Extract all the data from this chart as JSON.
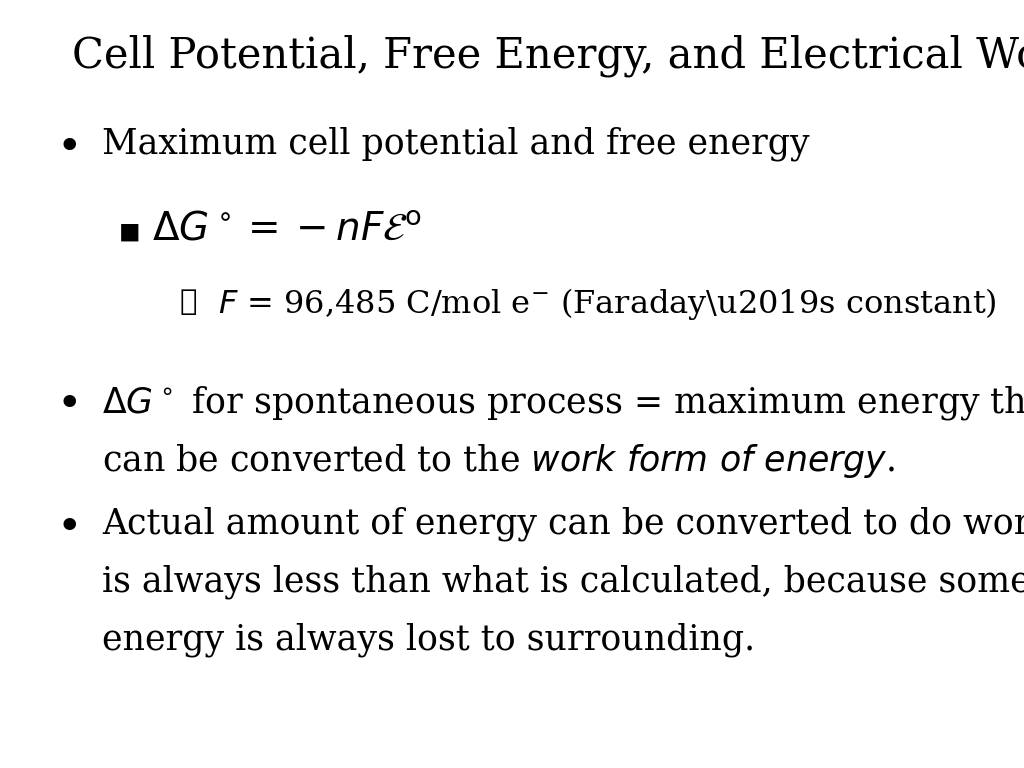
{
  "title": "Cell Potential, Free Energy, and Electrical Work",
  "background_color": "#ffffff",
  "text_color": "#000000",
  "title_fontsize": 30,
  "body_fontsize": 25,
  "sub_fontsize": 27,
  "subsub_fontsize": 23,
  "faradays_constant": "F = 96,485 C/mol e⁻ (Faraday’s constant)"
}
